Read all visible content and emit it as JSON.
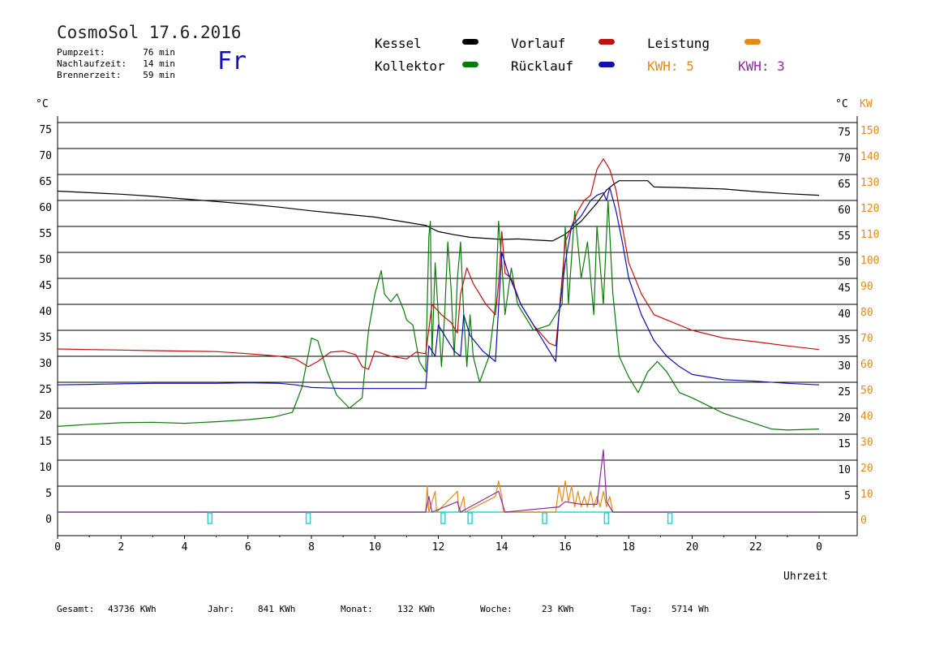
{
  "header": {
    "title": "CosmoSol 17.6.2016",
    "day": "Fr",
    "stats": [
      {
        "label": "Pumpzeit:",
        "value": "76 min"
      },
      {
        "label": "Nachlaufzeit:",
        "value": "14 min"
      },
      {
        "label": "Brennerzeit:",
        "value": "59 min"
      }
    ]
  },
  "legend": {
    "kessel": "Kessel",
    "kollektor": "Kollektor",
    "vorlauf": "Vorlauf",
    "ruecklauf": "Rücklauf",
    "leistung": "Leistung",
    "kwh1": "KWH: 5",
    "kwh2": "KWH: 3"
  },
  "colors": {
    "kessel": "#000000",
    "kollektor": "#0a7a0a",
    "vorlauf": "#c01010",
    "ruecklauf": "#1010b0",
    "leistung": "#e38a1c",
    "kwh2": "#8b2b9b",
    "baseline": "#30d0d0"
  },
  "footer": [
    {
      "label": "Gesamt:",
      "value": "43736 KWh"
    },
    {
      "label": "Jahr:",
      "value": "841 KWh"
    },
    {
      "label": "Monat:",
      "value": "132 KWh"
    },
    {
      "label": "Woche:",
      "value": "23 KWh"
    },
    {
      "label": "Tag:",
      "value": "5714 Wh"
    }
  ],
  "chart_data": {
    "type": "line",
    "xlabel": "Uhrzeit",
    "ylabel_left": "°C",
    "ylabel_right_c": "°C",
    "ylabel_right_kw": "KW",
    "xlim": [
      0,
      24
    ],
    "ylim": [
      0,
      75
    ],
    "x_ticks": [
      "0",
      "2",
      "4",
      "6",
      "8",
      "10",
      "12",
      "14",
      "16",
      "18",
      "20",
      "22",
      "0"
    ],
    "y_ticks": [
      0,
      5,
      10,
      15,
      20,
      25,
      30,
      35,
      40,
      45,
      50,
      55,
      60,
      65,
      70,
      75
    ],
    "right_c_ticks": [
      5,
      10,
      15,
      20,
      25,
      30,
      35,
      40,
      45,
      50,
      55,
      60,
      65,
      70,
      75
    ],
    "right_kw_ticks": [
      0,
      10,
      20,
      30,
      40,
      50,
      60,
      70,
      80,
      90,
      100,
      110,
      120,
      130,
      140,
      150
    ],
    "grid": true,
    "series": [
      {
        "name": "Kessel",
        "color": "#000000",
        "points": [
          [
            0,
            61.8
          ],
          [
            1,
            61.5
          ],
          [
            2,
            61.2
          ],
          [
            3,
            60.8
          ],
          [
            4,
            60.3
          ],
          [
            5,
            59.8
          ],
          [
            6,
            59.3
          ],
          [
            7,
            58.7
          ],
          [
            8,
            58
          ],
          [
            9,
            57.4
          ],
          [
            10,
            56.8
          ],
          [
            11,
            55.8
          ],
          [
            11.6,
            55.2
          ],
          [
            12,
            54
          ],
          [
            12.5,
            53.4
          ],
          [
            13,
            52.9
          ],
          [
            14,
            52.5
          ],
          [
            14.5,
            52.6
          ],
          [
            15,
            52.4
          ],
          [
            15.6,
            52.2
          ],
          [
            16,
            53.5
          ],
          [
            16.5,
            56
          ],
          [
            17,
            59.5
          ],
          [
            17.3,
            62
          ],
          [
            17.5,
            63
          ],
          [
            17.7,
            63.8
          ],
          [
            18,
            63.8
          ],
          [
            18.6,
            63.8
          ],
          [
            18.8,
            62.6
          ],
          [
            19.5,
            62.5
          ],
          [
            20,
            62.4
          ],
          [
            21,
            62.2
          ],
          [
            22,
            61.7
          ],
          [
            23,
            61.3
          ],
          [
            24,
            61
          ]
        ]
      },
      {
        "name": "Kollektor",
        "color": "#0a7a0a",
        "points": [
          [
            0,
            16.5
          ],
          [
            1,
            16.9
          ],
          [
            2,
            17.2
          ],
          [
            3,
            17.3
          ],
          [
            4,
            17.1
          ],
          [
            5,
            17.4
          ],
          [
            6,
            17.8
          ],
          [
            6.8,
            18.3
          ],
          [
            7.4,
            19.2
          ],
          [
            7.7,
            24
          ],
          [
            8,
            33.5
          ],
          [
            8.2,
            33
          ],
          [
            8.5,
            27
          ],
          [
            8.8,
            22.5
          ],
          [
            9.2,
            20
          ],
          [
            9.6,
            22
          ],
          [
            9.8,
            35
          ],
          [
            10,
            42
          ],
          [
            10.2,
            46.5
          ],
          [
            10.3,
            42
          ],
          [
            10.5,
            40.5
          ],
          [
            10.7,
            42
          ],
          [
            10.9,
            39
          ],
          [
            11,
            37
          ],
          [
            11.2,
            36
          ],
          [
            11.4,
            29
          ],
          [
            11.6,
            27
          ],
          [
            11.7,
            53
          ],
          [
            11.75,
            56
          ],
          [
            11.8,
            30
          ],
          [
            11.9,
            48
          ],
          [
            12,
            38
          ],
          [
            12.1,
            28
          ],
          [
            12.2,
            38
          ],
          [
            12.3,
            52
          ],
          [
            12.4,
            43
          ],
          [
            12.5,
            30
          ],
          [
            12.6,
            45
          ],
          [
            12.7,
            52
          ],
          [
            12.8,
            38
          ],
          [
            12.9,
            28
          ],
          [
            13,
            38
          ],
          [
            13.1,
            30
          ],
          [
            13.3,
            25
          ],
          [
            13.6,
            30
          ],
          [
            13.8,
            40
          ],
          [
            13.9,
            56
          ],
          [
            14,
            48
          ],
          [
            14.1,
            38
          ],
          [
            14.3,
            47
          ],
          [
            14.5,
            40
          ],
          [
            15,
            35
          ],
          [
            15.5,
            36
          ],
          [
            15.9,
            40
          ],
          [
            16,
            55
          ],
          [
            16.1,
            40
          ],
          [
            16.3,
            58
          ],
          [
            16.5,
            45
          ],
          [
            16.7,
            52
          ],
          [
            16.9,
            38
          ],
          [
            17,
            55
          ],
          [
            17.2,
            40
          ],
          [
            17.35,
            60
          ],
          [
            17.5,
            42
          ],
          [
            17.7,
            30
          ],
          [
            18,
            26
          ],
          [
            18.3,
            23
          ],
          [
            18.6,
            27
          ],
          [
            18.9,
            29
          ],
          [
            19.2,
            27
          ],
          [
            19.6,
            23
          ],
          [
            20,
            22
          ],
          [
            20.5,
            20.5
          ],
          [
            21,
            19
          ],
          [
            21.5,
            18
          ],
          [
            22,
            17
          ],
          [
            22.5,
            16
          ],
          [
            23,
            15.8
          ],
          [
            24,
            16
          ]
        ]
      },
      {
        "name": "Vorlauf",
        "color": "#c01010",
        "points": [
          [
            0,
            31.4
          ],
          [
            1,
            31.3
          ],
          [
            2,
            31.2
          ],
          [
            3,
            31.1
          ],
          [
            4,
            31
          ],
          [
            5,
            30.9
          ],
          [
            6,
            30.5
          ],
          [
            7,
            30
          ],
          [
            7.5,
            29.5
          ],
          [
            7.9,
            28
          ],
          [
            8.2,
            29
          ],
          [
            8.6,
            30.8
          ],
          [
            9,
            31
          ],
          [
            9.4,
            30.3
          ],
          [
            9.6,
            28
          ],
          [
            9.8,
            27.5
          ],
          [
            10,
            31
          ],
          [
            10.5,
            30
          ],
          [
            11,
            29.5
          ],
          [
            11.3,
            30.8
          ],
          [
            11.6,
            30.5
          ],
          [
            11.8,
            40
          ],
          [
            12.1,
            38
          ],
          [
            12.4,
            36.5
          ],
          [
            12.6,
            34.5
          ],
          [
            12.7,
            42
          ],
          [
            12.9,
            47
          ],
          [
            13.1,
            44
          ],
          [
            13.5,
            40
          ],
          [
            13.8,
            38
          ],
          [
            13.9,
            44
          ],
          [
            14,
            54
          ],
          [
            14.1,
            46
          ],
          [
            14.3,
            45
          ],
          [
            14.6,
            40
          ],
          [
            15,
            36
          ],
          [
            15.5,
            32.5
          ],
          [
            15.7,
            32
          ],
          [
            15.8,
            38
          ],
          [
            16,
            52
          ],
          [
            16.2,
            55
          ],
          [
            16.4,
            58
          ],
          [
            16.6,
            60
          ],
          [
            16.8,
            61
          ],
          [
            17,
            66
          ],
          [
            17.2,
            68
          ],
          [
            17.4,
            66
          ],
          [
            17.6,
            62
          ],
          [
            17.8,
            55
          ],
          [
            18,
            48
          ],
          [
            18.4,
            42
          ],
          [
            18.8,
            38
          ],
          [
            19.2,
            37
          ],
          [
            20,
            35
          ],
          [
            21,
            33.5
          ],
          [
            22,
            32.8
          ],
          [
            23,
            32
          ],
          [
            24,
            31.3
          ]
        ]
      },
      {
        "name": "Rücklauf",
        "color": "#1010b0",
        "points": [
          [
            0,
            24.5
          ],
          [
            1,
            24.6
          ],
          [
            2,
            24.7
          ],
          [
            3,
            24.8
          ],
          [
            4,
            24.8
          ],
          [
            5,
            24.8
          ],
          [
            6,
            24.9
          ],
          [
            7,
            24.8
          ],
          [
            7.5,
            24.5
          ],
          [
            8,
            24
          ],
          [
            9,
            23.8
          ],
          [
            10,
            23.8
          ],
          [
            11,
            23.8
          ],
          [
            11.6,
            23.8
          ],
          [
            11.7,
            32
          ],
          [
            11.9,
            30
          ],
          [
            12,
            36
          ],
          [
            12.3,
            33
          ],
          [
            12.5,
            31
          ],
          [
            12.7,
            30
          ],
          [
            12.8,
            38
          ],
          [
            13,
            34
          ],
          [
            13.4,
            31
          ],
          [
            13.8,
            29
          ],
          [
            14,
            50
          ],
          [
            14.2,
            46
          ],
          [
            14.6,
            40
          ],
          [
            15,
            36
          ],
          [
            15.4,
            32
          ],
          [
            15.7,
            29
          ],
          [
            15.8,
            38
          ],
          [
            16,
            48
          ],
          [
            16.2,
            55
          ],
          [
            16.5,
            57
          ],
          [
            16.8,
            60
          ],
          [
            17,
            61
          ],
          [
            17.2,
            61.5
          ],
          [
            17.3,
            60
          ],
          [
            17.4,
            62.5
          ],
          [
            17.6,
            58
          ],
          [
            17.8,
            52
          ],
          [
            18,
            45
          ],
          [
            18.4,
            38
          ],
          [
            18.8,
            33
          ],
          [
            19.2,
            30
          ],
          [
            19.6,
            28
          ],
          [
            20,
            26.5
          ],
          [
            21,
            25.5
          ],
          [
            22,
            25.2
          ],
          [
            23,
            24.8
          ],
          [
            24,
            24.5
          ]
        ]
      },
      {
        "name": "Leistung",
        "color": "#e38a1c",
        "points": [
          [
            0,
            0
          ],
          [
            11.6,
            0
          ],
          [
            11.65,
            5
          ],
          [
            11.7,
            0
          ],
          [
            11.9,
            4
          ],
          [
            11.95,
            0
          ],
          [
            12.6,
            4
          ],
          [
            12.65,
            0
          ],
          [
            12.8,
            3
          ],
          [
            12.85,
            0
          ],
          [
            13.8,
            3
          ],
          [
            13.9,
            6
          ],
          [
            14,
            3
          ],
          [
            14.05,
            0
          ],
          [
            15.7,
            0
          ],
          [
            15.8,
            5
          ],
          [
            15.9,
            2
          ],
          [
            16,
            6
          ],
          [
            16.1,
            2
          ],
          [
            16.2,
            5
          ],
          [
            16.3,
            1
          ],
          [
            16.4,
            4
          ],
          [
            16.5,
            1
          ],
          [
            16.6,
            3
          ],
          [
            16.7,
            1
          ],
          [
            16.8,
            4
          ],
          [
            16.9,
            1
          ],
          [
            17,
            3
          ],
          [
            17.1,
            1
          ],
          [
            17.2,
            4
          ],
          [
            17.3,
            1
          ],
          [
            17.4,
            3
          ],
          [
            17.5,
            0
          ],
          [
            24,
            0
          ]
        ]
      },
      {
        "name": "KWH 3",
        "color": "#8b2b9b",
        "points": [
          [
            0,
            0
          ],
          [
            11.6,
            0
          ],
          [
            11.7,
            3
          ],
          [
            11.8,
            0
          ],
          [
            12.6,
            2
          ],
          [
            12.7,
            0
          ],
          [
            13.9,
            4
          ],
          [
            14.1,
            0
          ],
          [
            15.8,
            1
          ],
          [
            16,
            2
          ],
          [
            16.5,
            1.5
          ],
          [
            17,
            1.5
          ],
          [
            17.2,
            12
          ],
          [
            17.3,
            2
          ],
          [
            17.5,
            0
          ],
          [
            24,
            0
          ]
        ]
      }
    ],
    "markers_x": [
      4.8,
      7.9,
      12.15,
      13.0,
      15.35,
      17.3,
      19.3
    ]
  }
}
